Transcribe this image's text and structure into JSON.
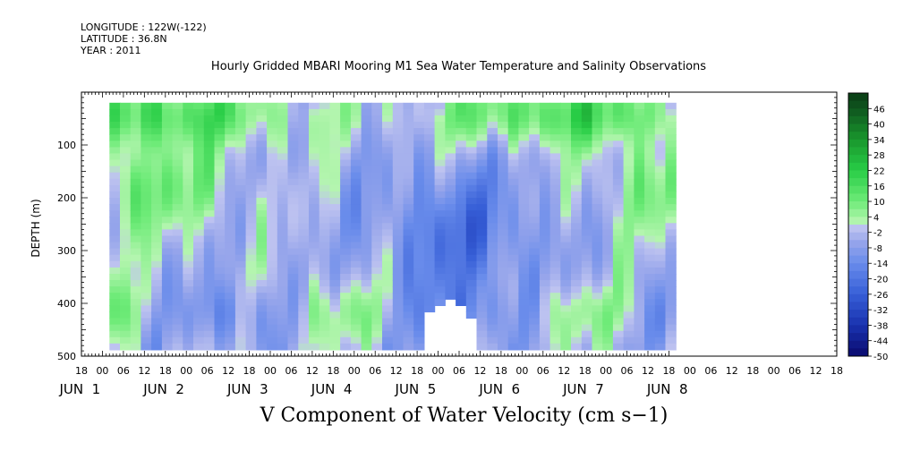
{
  "header": {
    "longitude": "LONGITUDE : 122W(-122)",
    "latitude": "LATITUDE : 36.8N",
    "year": "YEAR : 2011",
    "title": "Hourly Gridded MBARI Mooring M1 Sea Water Temperature and Salinity Observations"
  },
  "chart_data": {
    "type": "heatmap",
    "title": "Hourly Gridded MBARI Mooring M1 Sea Water Temperature and Salinity Observations",
    "xlabel": "V Component of Water Velocity (cm s-1)",
    "ylabel": "DEPTH (m)",
    "x_hour_tick_labels": [
      "18",
      "00",
      "06",
      "12",
      "18",
      "00",
      "06",
      "12",
      "18",
      "00",
      "06",
      "12",
      "18",
      "00",
      "06",
      "12",
      "18",
      "00",
      "06",
      "12",
      "18",
      "00",
      "06",
      "12",
      "18",
      "00",
      "06",
      "12",
      "18",
      "00",
      "06",
      "12",
      "18",
      "00",
      "06",
      "12",
      "18"
    ],
    "x_day_labels": [
      "JUN  1",
      "JUN  2",
      "JUN  3",
      "JUN  4",
      "JUN  5",
      "JUN  6",
      "JUN  7",
      "JUN  8"
    ],
    "y_tick_labels": [
      "100",
      "200",
      "300",
      "400",
      "500"
    ],
    "ylim": [
      500,
      0
    ],
    "data_depth_range_m": [
      20,
      485
    ],
    "colorbar": {
      "labels": [
        "46",
        "40",
        "34",
        "28",
        "22",
        "16",
        "10",
        "4",
        "-2",
        "-8",
        "-14",
        "-20",
        "-26",
        "-32",
        "-38",
        "-44",
        "-50"
      ],
      "range": [
        -50,
        52
      ],
      "step": 3
    },
    "grid": false
  },
  "xtitle": "V Component of Water Velocity (cm s−1)",
  "ylabel": "DEPTH (m)"
}
